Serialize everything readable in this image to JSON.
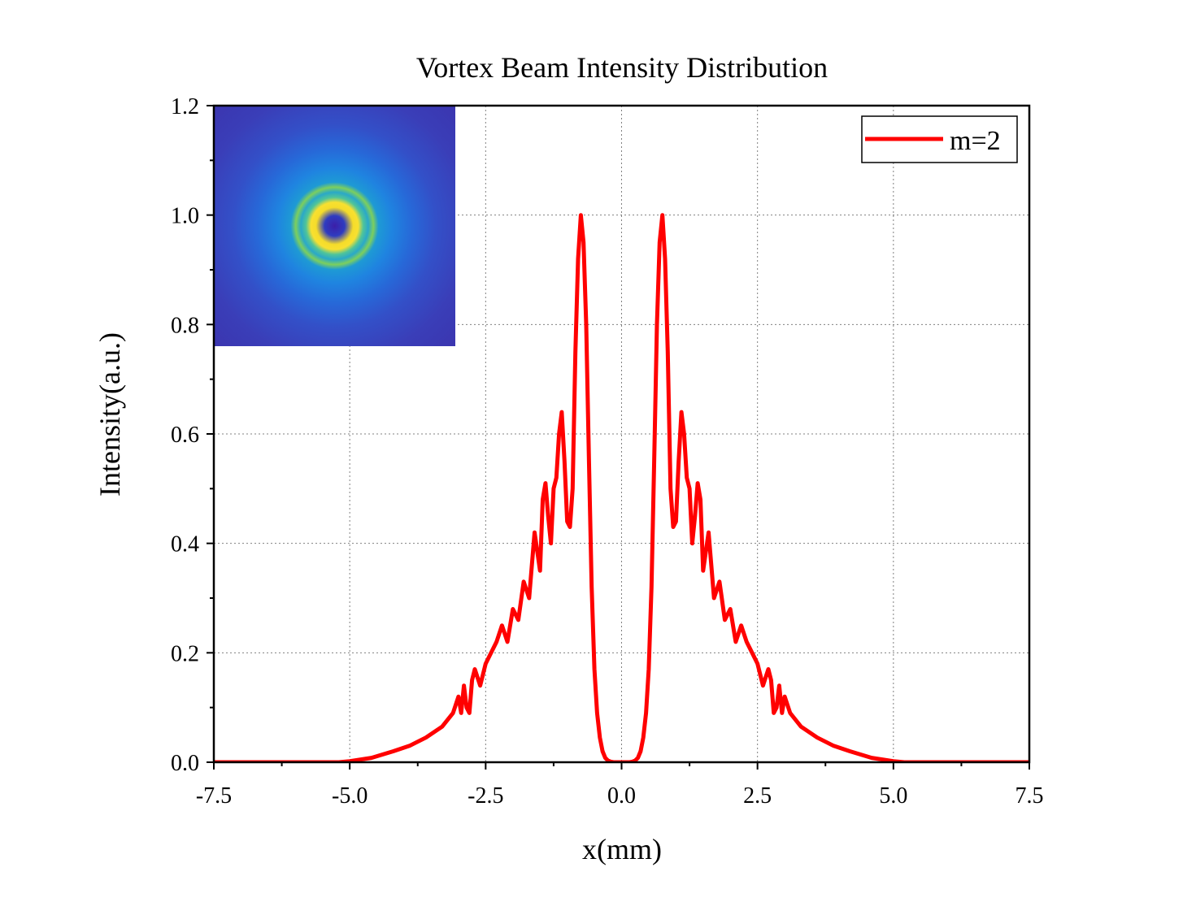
{
  "chart_data": {
    "type": "line",
    "title": "Vortex Beam Intensity Distribution",
    "xlabel": "x(mm)",
    "ylabel": "Intensity(a.u.)",
    "xlim": [
      -7.5,
      7.5
    ],
    "ylim": [
      0,
      1.2
    ],
    "xticks": [
      -7.5,
      -5.0,
      -2.5,
      0.0,
      2.5,
      5.0,
      7.5
    ],
    "xtick_labels": [
      "-7.5",
      "-5.0",
      "-2.5",
      "0.0",
      "2.5",
      "5.0",
      "7.5"
    ],
    "yticks": [
      0.0,
      0.2,
      0.4,
      0.6,
      0.8,
      1.0,
      1.2
    ],
    "ytick_labels": [
      "0.0",
      "0.2",
      "0.4",
      "0.6",
      "0.8",
      "1.0",
      "1.2"
    ],
    "grid": true,
    "legend_position": "top-right",
    "series": [
      {
        "name": "m=2",
        "color": "#ff0000",
        "x": [
          -7.5,
          -5.2,
          -5.0,
          -4.6,
          -4.2,
          -3.9,
          -3.6,
          -3.3,
          -3.1,
          -3.0,
          -2.95,
          -2.9,
          -2.85,
          -2.8,
          -2.75,
          -2.7,
          -2.6,
          -2.5,
          -2.4,
          -2.3,
          -2.2,
          -2.1,
          -2.0,
          -1.9,
          -1.8,
          -1.7,
          -1.6,
          -1.5,
          -1.45,
          -1.4,
          -1.35,
          -1.3,
          -1.25,
          -1.2,
          -1.15,
          -1.1,
          -1.05,
          -1.0,
          -0.95,
          -0.9,
          -0.85,
          -0.8,
          -0.75,
          -0.7,
          -0.65,
          -0.6,
          -0.55,
          -0.5,
          -0.45,
          -0.4,
          -0.35,
          -0.3,
          -0.25,
          -0.2,
          -0.15,
          -0.1,
          -0.05,
          0.0,
          0.05,
          0.1,
          0.15,
          0.2,
          0.25,
          0.3,
          0.35,
          0.4,
          0.45,
          0.5,
          0.55,
          0.6,
          0.65,
          0.7,
          0.75,
          0.8,
          0.85,
          0.9,
          0.95,
          1.0,
          1.05,
          1.1,
          1.15,
          1.2,
          1.25,
          1.3,
          1.35,
          1.4,
          1.45,
          1.5,
          1.6,
          1.7,
          1.8,
          1.9,
          2.0,
          2.1,
          2.2,
          2.3,
          2.4,
          2.5,
          2.6,
          2.7,
          2.75,
          2.8,
          2.85,
          2.9,
          2.95,
          3.0,
          3.1,
          3.3,
          3.6,
          3.9,
          4.2,
          4.6,
          5.0,
          5.2,
          7.5
        ],
        "y": [
          0.0,
          0.0,
          0.002,
          0.008,
          0.02,
          0.03,
          0.045,
          0.065,
          0.09,
          0.12,
          0.09,
          0.14,
          0.1,
          0.09,
          0.15,
          0.17,
          0.14,
          0.18,
          0.2,
          0.22,
          0.25,
          0.22,
          0.28,
          0.26,
          0.33,
          0.3,
          0.42,
          0.35,
          0.48,
          0.51,
          0.45,
          0.4,
          0.5,
          0.52,
          0.6,
          0.64,
          0.55,
          0.44,
          0.43,
          0.5,
          0.75,
          0.92,
          1.0,
          0.95,
          0.8,
          0.55,
          0.32,
          0.17,
          0.09,
          0.045,
          0.02,
          0.008,
          0.003,
          0.001,
          0.0,
          0.0,
          0.0,
          0.0,
          0.0,
          0.0,
          0.0,
          0.001,
          0.003,
          0.008,
          0.02,
          0.045,
          0.09,
          0.17,
          0.32,
          0.55,
          0.8,
          0.95,
          1.0,
          0.92,
          0.75,
          0.5,
          0.43,
          0.44,
          0.55,
          0.64,
          0.6,
          0.52,
          0.5,
          0.4,
          0.45,
          0.51,
          0.48,
          0.35,
          0.42,
          0.3,
          0.33,
          0.26,
          0.28,
          0.22,
          0.25,
          0.22,
          0.2,
          0.18,
          0.14,
          0.17,
          0.15,
          0.09,
          0.1,
          0.14,
          0.09,
          0.12,
          0.09,
          0.065,
          0.045,
          0.03,
          0.02,
          0.008,
          0.002,
          0.0,
          0.0
        ]
      }
    ]
  }
}
